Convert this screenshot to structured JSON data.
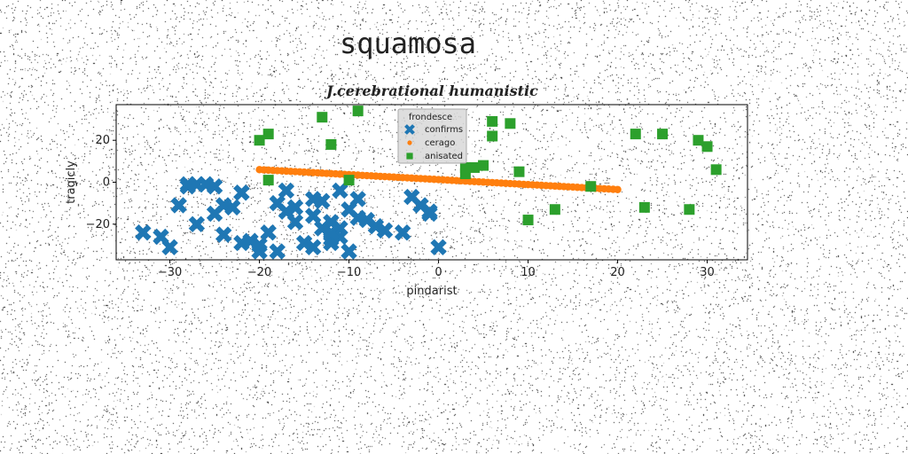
{
  "page": {
    "title": "squamosa"
  },
  "chart_data": {
    "type": "scatter",
    "title": "J.cerebrational humanistic",
    "xlabel": "pindarist",
    "ylabel": "tragicly",
    "xlim": [
      -36,
      34.5
    ],
    "ylim": [
      -37,
      37
    ],
    "xticks": [
      -30,
      -20,
      -10,
      0,
      10,
      20,
      30
    ],
    "yticks": [
      -20,
      0,
      20
    ],
    "grid": false,
    "legend": {
      "title": "frondesce",
      "placement": "upper-center"
    },
    "colors": {
      "confirms": "#1f77b4",
      "cerago": "#ff7f0e",
      "anisated": "#2ca02c"
    },
    "series": [
      {
        "name": "confirms",
        "marker": "X",
        "x": [
          -33,
          -31,
          -30,
          -28,
          -29,
          -27,
          -26,
          -25,
          -24,
          -23,
          -22,
          -25,
          -26,
          -27,
          -28,
          -22,
          -20,
          -21,
          -19,
          -18,
          -17,
          -16,
          -17,
          -15,
          -14,
          -13,
          -12,
          -11,
          -10,
          -12,
          -13,
          -14,
          -11,
          -9,
          -8,
          -7,
          -6,
          -10,
          -11,
          -12,
          -3,
          -2,
          -1,
          -4,
          -1,
          0,
          -24,
          -20,
          -22,
          -18,
          -16,
          -14,
          -12,
          -9
        ],
        "y": [
          -24,
          -26,
          -31,
          -2,
          -11,
          -1,
          -1,
          -2,
          -11,
          -12,
          -5,
          -15,
          -1,
          -20,
          -1,
          -29,
          -33,
          -28,
          -24,
          -33,
          -4,
          -19,
          -14,
          -29,
          -8,
          -9,
          -27,
          -22,
          -13,
          -19,
          -22,
          -16,
          -4,
          -8,
          -18,
          -21,
          -23,
          -33,
          -26,
          -29,
          -7,
          -11,
          -15,
          -24,
          -14,
          -31,
          -25,
          -30,
          -5,
          -10,
          -12,
          -31,
          -24,
          -17
        ]
      },
      {
        "name": "cerago",
        "marker": "o",
        "x": [
          -20,
          -19.5,
          -19,
          -18.5,
          -18,
          -17.5,
          -17,
          -16.5,
          -16,
          -15.5,
          -15,
          -14.5,
          -14,
          -13.5,
          -13,
          -12.5,
          -12,
          -11.5,
          -11,
          -10.5,
          -10,
          -9.5,
          -9,
          -8.5,
          -8,
          -7.5,
          -7,
          -6.5,
          -6,
          -5.5,
          -5,
          -4.5,
          -4,
          -3.5,
          -3,
          -2.5,
          -2,
          -1.5,
          -1,
          -0.5,
          0,
          0.5,
          1,
          1.5,
          2,
          2.5,
          3,
          3.5,
          4,
          4.5,
          5,
          5.5,
          6,
          6.5,
          7,
          7.5,
          8,
          8.5,
          9,
          9.5,
          10,
          10.5,
          11,
          11.5,
          12,
          12.5,
          13,
          13.5,
          14,
          14.5,
          15,
          15.5,
          16,
          16.5,
          17,
          17.5,
          18,
          18.5,
          19,
          19.5,
          20
        ],
        "y": [
          6,
          5.88,
          5.76,
          5.64,
          5.53,
          5.41,
          5.29,
          5.17,
          5.05,
          4.93,
          4.81,
          4.69,
          4.58,
          4.46,
          4.34,
          4.22,
          4.1,
          3.98,
          3.86,
          3.74,
          3.63,
          3.51,
          3.39,
          3.27,
          3.15,
          3.03,
          2.91,
          2.79,
          2.68,
          2.56,
          2.44,
          2.32,
          2.2,
          2.08,
          1.96,
          1.84,
          1.73,
          1.61,
          1.49,
          1.37,
          1.25,
          1.13,
          1.01,
          0.89,
          0.78,
          0.66,
          0.54,
          0.42,
          0.3,
          0.18,
          0.06,
          -0.06,
          -0.17,
          -0.29,
          -0.41,
          -0.53,
          -0.65,
          -0.77,
          -0.89,
          -1.01,
          -1.12,
          -1.24,
          -1.36,
          -1.48,
          -1.6,
          -1.72,
          -1.84,
          -1.96,
          -2.07,
          -2.19,
          -2.31,
          -2.43,
          -2.55,
          -2.67,
          -2.79,
          -2.91,
          -3.02,
          -3.14,
          -3.26,
          -3.38,
          -3.5
        ]
      },
      {
        "name": "anisated",
        "marker": "s",
        "x": [
          -20,
          -19,
          -19,
          -13,
          -12,
          -9,
          -10,
          3,
          3,
          4,
          5,
          6,
          6,
          8,
          9,
          10,
          13,
          17,
          22,
          23,
          25,
          28,
          29,
          30,
          31
        ],
        "y": [
          20,
          23,
          1,
          31,
          18,
          34,
          1,
          4,
          7,
          7,
          8,
          29,
          22,
          28,
          5,
          -18,
          -13,
          -2,
          23,
          -12,
          23,
          -13,
          20,
          17,
          6
        ]
      }
    ]
  }
}
